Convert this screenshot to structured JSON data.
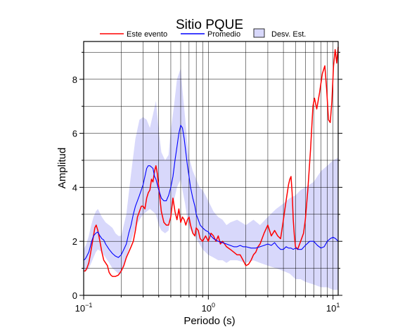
{
  "chart_data": {
    "type": "line",
    "title": "Sitio PQUE",
    "xlabel": "Periodo (s)",
    "ylabel": "Amplitud",
    "x_scale": "log",
    "xlim": [
      0.1,
      11
    ],
    "ylim": [
      0,
      9.4
    ],
    "grid": true,
    "legend_position": "top",
    "x_ticks": [
      {
        "value": 0.1,
        "base": "10",
        "exp": "−1"
      },
      {
        "value": 1,
        "base": "10",
        "exp": "0"
      },
      {
        "value": 10,
        "base": "10",
        "exp": "1"
      }
    ],
    "y_ticks": [
      0,
      2,
      4,
      6,
      8
    ],
    "legend": [
      {
        "label": "Este evento",
        "kind": "line",
        "color": "#ff0000"
      },
      {
        "label": "Promedio",
        "kind": "line",
        "color": "#0000ff"
      },
      {
        "label": "Desv. Est.",
        "kind": "band",
        "color": "#d8d8fb"
      }
    ],
    "band": {
      "name": "Desv. Est.",
      "color": "#d8d8fb",
      "x": [
        0.1,
        0.105,
        0.11,
        0.115,
        0.12,
        0.125,
        0.13,
        0.14,
        0.15,
        0.16,
        0.17,
        0.18,
        0.19,
        0.2,
        0.22,
        0.24,
        0.26,
        0.28,
        0.3,
        0.32,
        0.34,
        0.36,
        0.38,
        0.4,
        0.42,
        0.45,
        0.48,
        0.5,
        0.53,
        0.56,
        0.6,
        0.62,
        0.65,
        0.68,
        0.7,
        0.75,
        0.8,
        0.85,
        0.9,
        0.95,
        1.0,
        1.1,
        1.2,
        1.3,
        1.4,
        1.5,
        1.7,
        2.0,
        2.3,
        2.6,
        3.0,
        3.5,
        4.0,
        4.5,
        5.0,
        5.5,
        6.0,
        7.0,
        8.0,
        9.0,
        10.0,
        11.0
      ],
      "upper": [
        1.7,
        1.9,
        2.2,
        2.6,
        2.9,
        3.1,
        3.2,
        2.9,
        2.7,
        2.6,
        2.5,
        2.3,
        2.2,
        2.2,
        3.0,
        4.5,
        5.8,
        6.5,
        6.6,
        6.5,
        6.2,
        6.7,
        7.2,
        6.1,
        5.3,
        5.0,
        5.2,
        6.1,
        7.0,
        8.0,
        8.4,
        7.6,
        6.6,
        5.6,
        5.1,
        4.6,
        4.3,
        4.0,
        3.9,
        3.7,
        3.5,
        3.1,
        2.9,
        2.8,
        2.6,
        2.7,
        2.8,
        2.6,
        2.8,
        2.6,
        2.9,
        3.2,
        3.4,
        3.6,
        3.7,
        3.9,
        4.0,
        4.2,
        4.6,
        4.8,
        5.0,
        5.1
      ],
      "lower": [
        0.9,
        0.9,
        1.0,
        1.2,
        1.4,
        1.6,
        1.7,
        1.6,
        1.4,
        1.2,
        1.0,
        0.9,
        0.8,
        0.8,
        1.4,
        2.0,
        2.5,
        2.8,
        3.0,
        3.1,
        3.2,
        3.1,
        3.0,
        2.6,
        2.4,
        2.3,
        2.4,
        3.0,
        3.5,
        4.0,
        4.3,
        3.9,
        3.4,
        2.8,
        2.5,
        2.3,
        2.1,
        1.9,
        1.7,
        1.6,
        1.5,
        1.4,
        1.3,
        1.3,
        1.2,
        1.3,
        1.3,
        1.2,
        1.3,
        1.2,
        1.1,
        1.0,
        0.9,
        0.8,
        0.6,
        0.6,
        0.5,
        0.4,
        0.3,
        0.3,
        0.2,
        0.2
      ]
    },
    "series": [
      {
        "name": "Este evento",
        "color": "#ff0000",
        "x": [
          0.1,
          0.103,
          0.106,
          0.11,
          0.113,
          0.116,
          0.12,
          0.123,
          0.126,
          0.13,
          0.135,
          0.14,
          0.145,
          0.15,
          0.155,
          0.16,
          0.165,
          0.17,
          0.18,
          0.19,
          0.2,
          0.21,
          0.22,
          0.23,
          0.24,
          0.25,
          0.26,
          0.27,
          0.28,
          0.29,
          0.3,
          0.31,
          0.32,
          0.33,
          0.34,
          0.35,
          0.36,
          0.37,
          0.38,
          0.39,
          0.4,
          0.42,
          0.44,
          0.46,
          0.48,
          0.5,
          0.52,
          0.54,
          0.56,
          0.58,
          0.6,
          0.62,
          0.64,
          0.66,
          0.68,
          0.7,
          0.72,
          0.75,
          0.78,
          0.8,
          0.83,
          0.86,
          0.9,
          0.95,
          1.0,
          1.05,
          1.1,
          1.15,
          1.2,
          1.25,
          1.3,
          1.35,
          1.4,
          1.5,
          1.6,
          1.7,
          1.8,
          1.9,
          2.0,
          2.1,
          2.2,
          2.3,
          2.4,
          2.5,
          2.6,
          2.8,
          3.0,
          3.2,
          3.4,
          3.6,
          3.8,
          4.0,
          4.2,
          4.4,
          4.5,
          4.6,
          4.7,
          4.8,
          4.9,
          5.0,
          5.2,
          5.5,
          5.8,
          6.0,
          6.3,
          6.6,
          6.9,
          7.1,
          7.4,
          7.8,
          8.2,
          8.6,
          8.9,
          9.2,
          9.5,
          9.8,
          10.1,
          10.4,
          10.7,
          11.0
        ],
        "y": [
          0.9,
          0.9,
          1.0,
          1.2,
          1.5,
          1.8,
          2.2,
          2.5,
          2.6,
          2.4,
          2.0,
          1.6,
          1.3,
          1.2,
          1.1,
          0.85,
          0.75,
          0.7,
          0.7,
          0.75,
          0.9,
          1.1,
          1.4,
          1.6,
          1.8,
          2.0,
          2.4,
          2.9,
          3.1,
          3.3,
          3.3,
          3.2,
          3.6,
          3.8,
          3.9,
          4.3,
          4.2,
          4.6,
          4.8,
          4.5,
          4.0,
          3.1,
          2.7,
          2.6,
          2.6,
          2.9,
          3.6,
          3.1,
          2.8,
          3.2,
          2.7,
          2.9,
          2.8,
          2.6,
          2.8,
          2.9,
          2.6,
          2.3,
          2.2,
          2.5,
          2.4,
          2.1,
          2.0,
          2.2,
          2.0,
          2.3,
          2.2,
          2.0,
          2.2,
          1.9,
          2.0,
          1.9,
          1.8,
          1.7,
          1.6,
          1.5,
          1.5,
          1.3,
          1.1,
          1.15,
          1.3,
          1.5,
          1.6,
          1.8,
          1.9,
          2.3,
          2.6,
          2.2,
          2.4,
          2.2,
          2.1,
          2.8,
          3.5,
          4.1,
          4.3,
          4.4,
          3.8,
          2.8,
          2.2,
          1.8,
          1.7,
          2.0,
          2.3,
          2.8,
          4.0,
          5.4,
          7.0,
          7.3,
          6.9,
          7.5,
          8.2,
          8.5,
          7.6,
          6.5,
          6.4,
          7.2,
          8.5,
          9.1,
          8.6,
          9.2
        ]
      },
      {
        "name": "Promedio",
        "color": "#0000ff",
        "x": [
          0.1,
          0.103,
          0.106,
          0.11,
          0.113,
          0.116,
          0.12,
          0.125,
          0.13,
          0.135,
          0.14,
          0.145,
          0.15,
          0.16,
          0.17,
          0.18,
          0.19,
          0.2,
          0.21,
          0.22,
          0.23,
          0.24,
          0.25,
          0.26,
          0.27,
          0.28,
          0.29,
          0.3,
          0.31,
          0.32,
          0.33,
          0.34,
          0.35,
          0.36,
          0.37,
          0.38,
          0.39,
          0.4,
          0.42,
          0.44,
          0.46,
          0.48,
          0.5,
          0.52,
          0.54,
          0.56,
          0.58,
          0.6,
          0.62,
          0.64,
          0.66,
          0.68,
          0.7,
          0.72,
          0.75,
          0.78,
          0.8,
          0.83,
          0.86,
          0.9,
          0.95,
          1.0,
          1.05,
          1.1,
          1.15,
          1.2,
          1.3,
          1.4,
          1.5,
          1.6,
          1.7,
          1.8,
          1.9,
          2.0,
          2.2,
          2.4,
          2.6,
          2.8,
          3.0,
          3.2,
          3.4,
          3.6,
          3.8,
          4.0,
          4.2,
          4.4,
          4.6,
          4.8,
          5.0,
          5.3,
          5.6,
          6.0,
          6.5,
          7.0,
          7.5,
          8.0,
          8.5,
          9.0,
          9.5,
          10.0,
          10.5,
          11.0
        ],
        "y": [
          1.3,
          1.35,
          1.45,
          1.6,
          1.8,
          2.0,
          2.2,
          2.3,
          2.35,
          2.2,
          2.1,
          2.05,
          1.9,
          1.7,
          1.55,
          1.45,
          1.4,
          1.5,
          1.7,
          1.9,
          2.3,
          2.6,
          3.0,
          3.3,
          3.5,
          3.7,
          3.9,
          4.1,
          4.4,
          4.7,
          4.8,
          4.8,
          4.75,
          4.7,
          4.4,
          4.3,
          4.1,
          3.9,
          3.6,
          3.5,
          3.5,
          3.7,
          4.0,
          4.4,
          5.0,
          5.5,
          6.0,
          6.3,
          6.2,
          5.8,
          5.3,
          4.8,
          4.4,
          4.0,
          3.6,
          3.3,
          3.0,
          2.8,
          2.6,
          2.5,
          2.4,
          2.35,
          2.2,
          2.1,
          2.05,
          2.0,
          1.95,
          1.9,
          1.85,
          1.8,
          1.8,
          1.85,
          1.8,
          1.8,
          1.75,
          1.75,
          1.8,
          1.85,
          1.9,
          1.85,
          1.95,
          1.8,
          1.7,
          1.7,
          1.8,
          1.75,
          1.75,
          1.7,
          1.75,
          1.7,
          1.7,
          1.85,
          2.0,
          2.0,
          1.85,
          1.75,
          1.8,
          2.0,
          2.1,
          2.15,
          2.1,
          2.0
        ]
      }
    ]
  }
}
